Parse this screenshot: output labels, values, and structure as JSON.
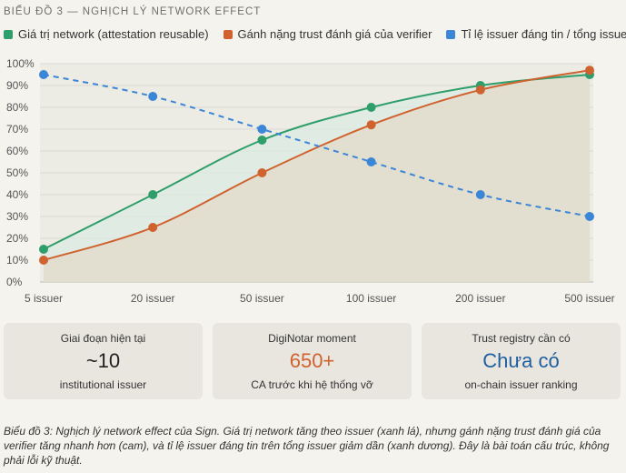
{
  "figure": {
    "title": "BIỂU ĐỒ 3 — NGHỊCH LÝ NETWORK EFFECT",
    "caption": "Biểu đồ 3: Nghịch lý network effect của Sign. Giá trị network tăng theo issuer (xanh lá), nhưng gánh nặng trust đánh giá của verifier tăng nhanh hơn (cam), và tỉ lệ issuer đáng tin trên tổng issuer giảm dần (xanh dương). Đây là bài toán cấu trúc, không phải lỗi kỹ thuật."
  },
  "chart_data": {
    "type": "line",
    "categories": [
      "5 issuer",
      "20 issuer",
      "50 issuer",
      "100 issuer",
      "200 issuer",
      "500 issuer"
    ],
    "ylim": [
      0,
      100
    ],
    "yticks": [
      "0%",
      "10%",
      "20%",
      "30%",
      "40%",
      "50%",
      "60%",
      "70%",
      "80%",
      "90%",
      "100%"
    ],
    "grid": true,
    "legend_position": "top",
    "series": [
      {
        "name": "Giá trị network (attestation reusable)",
        "values": [
          15,
          40,
          65,
          80,
          90,
          95
        ],
        "color": "#2e9e6a",
        "style": "solid"
      },
      {
        "name": "Gánh nặng trust đánh giá của verifier",
        "values": [
          10,
          25,
          50,
          72,
          88,
          97
        ],
        "color": "#d0622f",
        "style": "solid"
      },
      {
        "name": "Tỉ lệ issuer đáng tin / tổng issuer",
        "values": [
          95,
          85,
          70,
          55,
          40,
          30
        ],
        "color": "#3b86d6",
        "style": "dashed"
      }
    ]
  },
  "cards": [
    {
      "label": "Giai đoạn hiện tại",
      "value": "~10",
      "sub": "institutional issuer",
      "color": "#1f1f1f"
    },
    {
      "label": "DigiNotar moment",
      "value": "650+",
      "sub": "CA trước khi hệ thống vỡ",
      "color": "#d0622f"
    },
    {
      "label": "Trust registry cần có",
      "value": "Chưa có",
      "sub": "on-chain issuer ranking",
      "color": "#1f5f9f"
    }
  ]
}
